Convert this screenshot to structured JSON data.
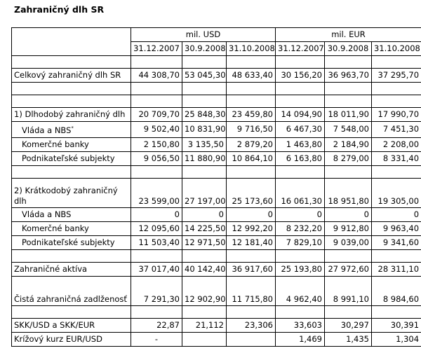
{
  "title": "Zahraničný dlh SR",
  "header": {
    "group_usd": "mil. USD",
    "group_eur": "mil. EUR",
    "dates": [
      "31.12.2007",
      "30.9.2008",
      "31.10.2008",
      "31.12.2007",
      "30.9.2008",
      "31.10.2008"
    ]
  },
  "rows": {
    "total": {
      "label": "Celkový zahraničný dlh SR",
      "values": [
        "44 308,70",
        "53 045,30",
        "48 633,40",
        "30 156,20",
        "36 963,70",
        "37 295,70"
      ]
    },
    "long": {
      "label": "1) Dlhodobý zahraničný dlh",
      "values": [
        "20 709,70",
        "25 848,30",
        "23 459,80",
        "14 094,90",
        "18 011,90",
        "17 990,70"
      ]
    },
    "long_gov": {
      "label": "Vláda a NBS",
      "sup": "*",
      "values": [
        "9 502,40",
        "10 831,90",
        "9 716,50",
        "6 467,30",
        "7 548,00",
        "7 451,30"
      ]
    },
    "long_banks": {
      "label": "Komerčné banky",
      "values": [
        "2 150,80",
        "3 135,50",
        "2 879,20",
        "1 463,80",
        "2 184,90",
        "2 208,00"
      ]
    },
    "long_corp": {
      "label": "Podnikateľské subjekty",
      "values": [
        "9 056,50",
        "11 880,90",
        "10 864,10",
        "6 163,80",
        "8 279,00",
        "8 331,40"
      ]
    },
    "short": {
      "label": "2) Krátkodobý zahraničný dlh",
      "values": [
        "23 599,00",
        "27 197,00",
        "25 173,60",
        "16 061,30",
        "18 951,80",
        "19 305,00"
      ]
    },
    "short_gov": {
      "label": "Vláda a NBS",
      "values": [
        "0",
        "0",
        "0",
        "0",
        "0",
        "0"
      ]
    },
    "short_banks": {
      "label": "Komerčné banky",
      "values": [
        "12 095,60",
        "14 225,50",
        "12 992,20",
        "8 232,20",
        "9 912,80",
        "9 963,40"
      ]
    },
    "short_corp": {
      "label": "Podnikateľské subjekty",
      "values": [
        "11 503,40",
        "12 971,50",
        "12 181,40",
        "7 829,10",
        "9 039,00",
        "9 341,60"
      ]
    },
    "assets": {
      "label": "Zahraničné aktíva",
      "values": [
        "37 017,40",
        "40 142,40",
        "36 917,60",
        "25 193,80",
        "27 972,60",
        "28 311,10"
      ]
    },
    "net": {
      "label": "Čistá zahraničná zadlženosť",
      "values": [
        "7 291,30",
        "12 902,90",
        "11 715,80",
        "4 962,40",
        "8 991,10",
        "8 984,60"
      ]
    },
    "fx": {
      "label": "SKK/USD a SKK/EUR",
      "values": [
        "22,87",
        "21,112",
        "23,306",
        "33,603",
        "30,297",
        "30,391"
      ]
    },
    "cross": {
      "label": "Krížový kurz EUR/USD",
      "values": [
        "-",
        "",
        "",
        "1,469",
        "1,435",
        "1,304"
      ]
    }
  }
}
